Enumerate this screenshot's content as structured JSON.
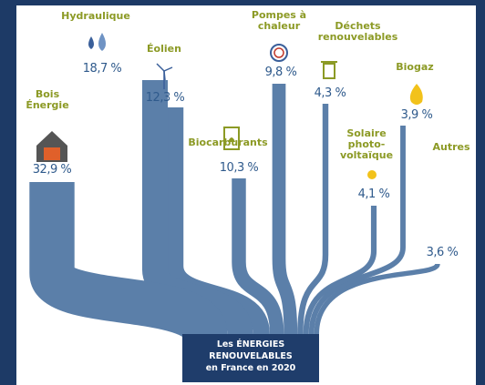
{
  "chart_data": {
    "type": "sankey",
    "categories": [
      "Bois Énergie",
      "Hydraulique",
      "Éolien",
      "Biocarburants",
      "Pompes à chaleur",
      "Déchets renouvelables",
      "Solaire photo-voltaïque",
      "Biogaz",
      "Autres"
    ],
    "values": [
      32.9,
      18.7,
      12.3,
      10.3,
      9.8,
      4.3,
      4.1,
      3.9,
      3.6
    ],
    "value_labels": [
      "32,9 %",
      "18,7 %",
      "12,3 %",
      "10,3 %",
      "9,8 %",
      "4,3 %",
      "4,1 %",
      "3,9 %",
      "3,6 %"
    ],
    "color": "#5b7fa9",
    "target": [
      "Les ÉNERGIES",
      "RENOUVELABLES",
      "en France en 2020"
    ]
  }
}
